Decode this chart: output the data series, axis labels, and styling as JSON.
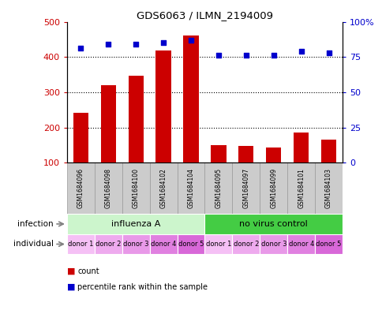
{
  "title": "GDS6063 / ILMN_2194009",
  "samples": [
    "GSM1684096",
    "GSM1684098",
    "GSM1684100",
    "GSM1684102",
    "GSM1684104",
    "GSM1684095",
    "GSM1684097",
    "GSM1684099",
    "GSM1684101",
    "GSM1684103"
  ],
  "counts": [
    242,
    320,
    347,
    418,
    460,
    150,
    147,
    143,
    185,
    165
  ],
  "percentiles": [
    81,
    84,
    84,
    85,
    87,
    76,
    76,
    76,
    79,
    78
  ],
  "ylim_left": [
    100,
    500
  ],
  "ylim_right": [
    0,
    100
  ],
  "yticks_left": [
    100,
    200,
    300,
    400,
    500
  ],
  "yticks_right": [
    0,
    25,
    50,
    75,
    100
  ],
  "yticklabels_right": [
    "0",
    "25",
    "50",
    "75",
    "100%"
  ],
  "dotted_lines": [
    200,
    300,
    400
  ],
  "infection_groups": [
    {
      "label": "influenza A",
      "start": 0,
      "end": 5,
      "color": "#ccf5cc"
    },
    {
      "label": "no virus control",
      "start": 5,
      "end": 10,
      "color": "#44cc44"
    }
  ],
  "individual_labels": [
    "donor 1",
    "donor 2",
    "donor 3",
    "donor 4",
    "donor 5",
    "donor 1",
    "donor 2",
    "donor 3",
    "donor 4",
    "donor 5"
  ],
  "individual_colors": [
    "#f5c0f5",
    "#eeaaee",
    "#e899e8",
    "#e080e0",
    "#d868d8",
    "#f5c0f5",
    "#eeaaee",
    "#e899e8",
    "#e080e0",
    "#d868d8"
  ],
  "bar_color": "#cc0000",
  "dot_color": "#0000cc",
  "bar_width": 0.55,
  "sample_bg_color": "#cccccc",
  "sample_border_color": "#999999"
}
